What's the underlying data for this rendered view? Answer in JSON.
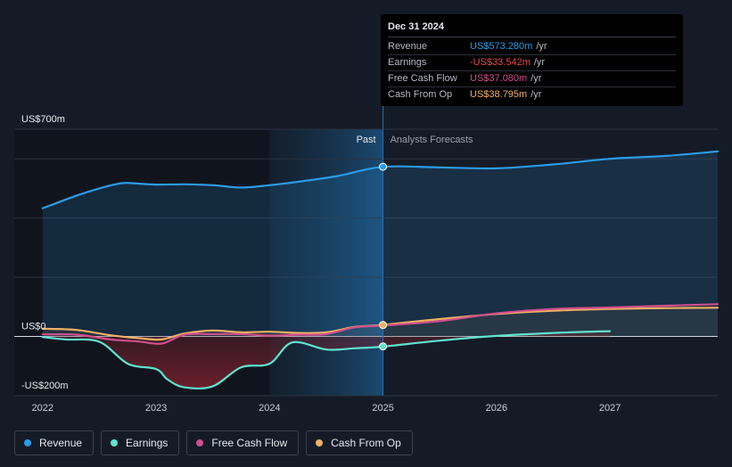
{
  "chart_data": {
    "type": "line",
    "x_ticks": [
      "2022",
      "2023",
      "2024",
      "2025",
      "2026",
      "2027"
    ],
    "x_tick_values": [
      2022,
      2023,
      2024,
      2025,
      2026,
      2027
    ],
    "xlim": [
      2021.75,
      2027.95
    ],
    "ylim": [
      -200,
      700
    ],
    "y_labels": [
      {
        "value": 700,
        "text": "US$700m"
      },
      {
        "value": 0,
        "text": "US$0"
      },
      {
        "value": -200,
        "text": "-US$200m"
      }
    ],
    "gridlines": [
      700,
      600,
      400,
      200,
      0,
      -200
    ],
    "divider_x": 2025.0,
    "highlight_start_x": 2024.0,
    "past_label": "Past",
    "forecast_label": "Analysts Forecasts",
    "series": [
      {
        "name": "Revenue",
        "color": "#2c9be8",
        "x": [
          2022.0,
          2022.3,
          2022.5,
          2022.7,
          2022.85,
          2023.0,
          2023.25,
          2023.5,
          2023.75,
          2024.0,
          2024.3,
          2024.6,
          2025.0,
          2025.5,
          2026.0,
          2026.5,
          2027.0,
          2027.5,
          2027.95
        ],
        "y": [
          433,
          476,
          500,
          518,
          516,
          513,
          514,
          511,
          503,
          511,
          525,
          542,
          573,
          571,
          568,
          581,
          600,
          610,
          625
        ]
      },
      {
        "name": "Earnings",
        "color": "#5fe3cf",
        "x": [
          2022.0,
          2022.2,
          2022.5,
          2022.75,
          2023.0,
          2023.1,
          2023.25,
          2023.5,
          2023.75,
          2024.0,
          2024.2,
          2024.5,
          2024.75,
          2025.0,
          2025.5,
          2026.0,
          2026.5,
          2027.0
        ],
        "y": [
          -2,
          -10,
          -18,
          -92,
          -110,
          -145,
          -172,
          -168,
          -104,
          -92,
          -20,
          -44,
          -40,
          -34,
          -14,
          2,
          12,
          18
        ]
      },
      {
        "name": "Free Cash Flow",
        "color": "#d04f8d",
        "x": [
          2022.0,
          2022.3,
          2022.6,
          2022.85,
          2023.05,
          2023.25,
          2023.5,
          2023.75,
          2024.0,
          2024.25,
          2024.5,
          2024.75,
          2025.0,
          2025.5,
          2026.0,
          2026.5,
          2027.0,
          2027.5,
          2027.95
        ],
        "y": [
          7,
          6,
          -10,
          -17,
          -24,
          6,
          8,
          8,
          3,
          6,
          8,
          31,
          37,
          52,
          78,
          93,
          98,
          104,
          109
        ]
      },
      {
        "name": "Cash From Op",
        "color": "#f0b064",
        "x": [
          2022.0,
          2022.3,
          2022.6,
          2022.85,
          2023.05,
          2023.25,
          2023.5,
          2023.75,
          2024.0,
          2024.25,
          2024.5,
          2024.75,
          2025.0,
          2025.5,
          2026.0,
          2026.5,
          2027.0,
          2027.5,
          2027.95
        ],
        "y": [
          26,
          22,
          4,
          -6,
          -10,
          10,
          20,
          14,
          16,
          12,
          14,
          32,
          39,
          59,
          76,
          87,
          93,
          96,
          97
        ]
      }
    ],
    "tooltip": {
      "date": "Dec 31 2024",
      "x": 2025.0,
      "rows": [
        {
          "label": "Revenue",
          "value": "US$573.280m",
          "unit": "/yr",
          "color": "#2c9be8",
          "point": 573.28
        },
        {
          "label": "Earnings",
          "value": "-US$33.542m",
          "unit": "/yr",
          "color": "#e64848",
          "point": -33.542
        },
        {
          "label": "Free Cash Flow",
          "value": "US$37.080m",
          "unit": "/yr",
          "color": "#d04f8d",
          "point": 37.08
        },
        {
          "label": "Cash From Op",
          "value": "US$38.795m",
          "unit": "/yr",
          "color": "#f0b064",
          "point": 38.795
        }
      ]
    },
    "legend": [
      {
        "label": "Revenue",
        "color": "#2c9be8"
      },
      {
        "label": "Earnings",
        "color": "#5fe3cf"
      },
      {
        "label": "Free Cash Flow",
        "color": "#d04f8d"
      },
      {
        "label": "Cash From Op",
        "color": "#f0b064"
      }
    ]
  }
}
